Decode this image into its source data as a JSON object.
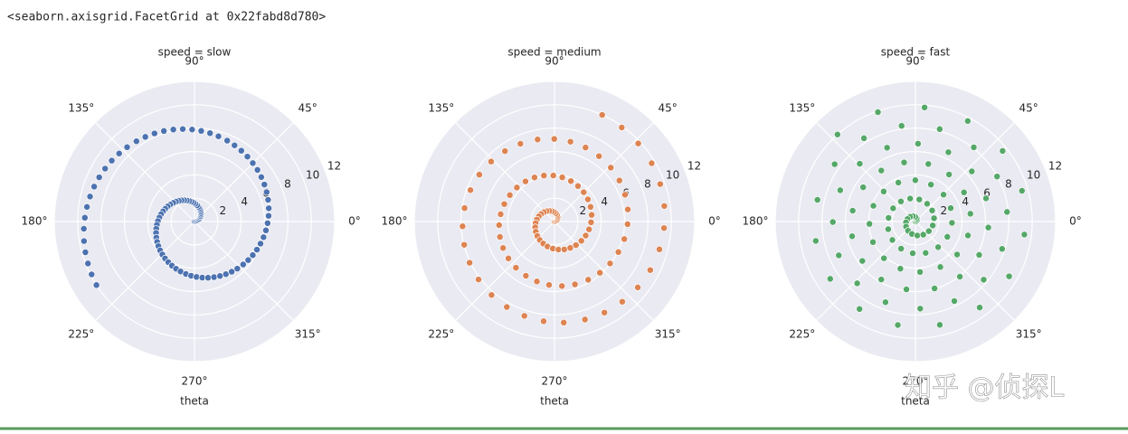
{
  "header": "<seaborn.axisgrid.FacetGrid at 0x22fabd8d780>",
  "watermark": "知乎 @侦探L",
  "chart_data": [
    {
      "type": "scatter",
      "title": "speed = slow",
      "xlabel": "theta",
      "color": "#4c72b0",
      "polar": true,
      "grid": true,
      "ylim": [
        0,
        12
      ],
      "yticks": [
        2,
        4,
        6,
        8,
        10,
        12
      ],
      "xticks": [
        {
          "value": 0,
          "label": "0°"
        },
        {
          "value": 0.7854,
          "label": "45°"
        },
        {
          "value": 1.5708,
          "label": "90°"
        },
        {
          "value": 2.3562,
          "label": "135°"
        },
        {
          "value": 3.1416,
          "label": "180°"
        },
        {
          "value": 3.927,
          "label": "225°"
        },
        {
          "value": 4.7124,
          "label": "270°"
        },
        {
          "value": 5.4978,
          "label": "315°"
        }
      ],
      "x": [
        0,
        0.1,
        0.2,
        0.3,
        0.4,
        0.51,
        0.61,
        0.71,
        0.81,
        0.91,
        1.01,
        1.11,
        1.21,
        1.31,
        1.41,
        1.52,
        1.62,
        1.72,
        1.82,
        1.92,
        2.02,
        2.12,
        2.22,
        2.32,
        2.42,
        2.53,
        2.63,
        2.73,
        2.83,
        2.93,
        3.03,
        3.13,
        3.23,
        3.33,
        3.43,
        3.54,
        3.64,
        3.74,
        3.84,
        3.94,
        4.04,
        4.14,
        4.24,
        4.34,
        4.44,
        4.55,
        4.65,
        4.75,
        4.85,
        4.95,
        5.05,
        5.15,
        5.25,
        5.35,
        5.45,
        5.56,
        5.66,
        5.76,
        5.86,
        5.96,
        6.06,
        6.16,
        6.26,
        6.36,
        6.46,
        6.57,
        6.67,
        6.77,
        6.87,
        6.97,
        7.07,
        7.17,
        7.27,
        7.37,
        7.47,
        7.58,
        7.68,
        7.78,
        7.88,
        7.98,
        8.08,
        8.18,
        8.28,
        8.38,
        8.48,
        8.59,
        8.69,
        8.79,
        8.89,
        8.99,
        9.09,
        9.19,
        9.29,
        9.39,
        9.49,
        9.6,
        9.7,
        9.8,
        9.9,
        10
      ],
      "values": [
        0,
        0.1,
        0.2,
        0.3,
        0.4,
        0.51,
        0.61,
        0.71,
        0.81,
        0.91,
        1.01,
        1.11,
        1.21,
        1.31,
        1.41,
        1.52,
        1.62,
        1.72,
        1.82,
        1.92,
        2.02,
        2.12,
        2.22,
        2.32,
        2.42,
        2.53,
        2.63,
        2.73,
        2.83,
        2.93,
        3.03,
        3.13,
        3.23,
        3.33,
        3.43,
        3.54,
        3.64,
        3.74,
        3.84,
        3.94,
        4.04,
        4.14,
        4.24,
        4.34,
        4.44,
        4.55,
        4.65,
        4.75,
        4.85,
        4.95,
        5.05,
        5.15,
        5.25,
        5.35,
        5.45,
        5.56,
        5.66,
        5.76,
        5.86,
        5.96,
        6.06,
        6.16,
        6.26,
        6.36,
        6.46,
        6.57,
        6.67,
        6.77,
        6.87,
        6.97,
        7.07,
        7.17,
        7.27,
        7.37,
        7.47,
        7.58,
        7.68,
        7.78,
        7.88,
        7.98,
        8.08,
        8.18,
        8.28,
        8.38,
        8.48,
        8.59,
        8.69,
        8.79,
        8.89,
        8.99,
        9.09,
        9.19,
        9.29,
        9.39,
        9.49,
        9.6,
        9.7,
        9.8,
        9.9,
        10
      ]
    },
    {
      "type": "scatter",
      "title": "speed = medium",
      "xlabel": "theta",
      "color": "#dd8452",
      "polar": true,
      "grid": true,
      "ylim": [
        0,
        12
      ],
      "yticks": [
        2,
        4,
        6,
        8,
        10,
        12
      ],
      "xticks": [
        {
          "value": 0,
          "label": "0°"
        },
        {
          "value": 0.7854,
          "label": "45°"
        },
        {
          "value": 1.5708,
          "label": "90°"
        },
        {
          "value": 2.3562,
          "label": "135°"
        },
        {
          "value": 3.1416,
          "label": "180°"
        },
        {
          "value": 3.927,
          "label": "225°"
        },
        {
          "value": 4.7124,
          "label": "270°"
        },
        {
          "value": 5.4978,
          "label": "315°"
        }
      ],
      "x": [
        0,
        0.2,
        0.4,
        0.61,
        0.81,
        1.01,
        1.21,
        1.41,
        1.62,
        1.82,
        2.02,
        2.22,
        2.42,
        2.63,
        2.83,
        3.03,
        3.23,
        3.43,
        3.64,
        3.84,
        4.04,
        4.24,
        4.44,
        4.65,
        4.85,
        5.05,
        5.25,
        5.45,
        5.66,
        5.86,
        6.06,
        6.26,
        6.46,
        6.67,
        6.87,
        7.07,
        7.27,
        7.47,
        7.68,
        7.88,
        8.08,
        8.28,
        8.48,
        8.69,
        8.89,
        9.09,
        9.29,
        9.49,
        9.7,
        9.9,
        10.1,
        10.3,
        10.51,
        10.71,
        10.91,
        11.11,
        11.31,
        11.52,
        11.72,
        11.92,
        12.12,
        12.32,
        12.53,
        12.73,
        12.93,
        13.13,
        13.33,
        13.54,
        13.74,
        13.94,
        14.14,
        14.34,
        14.55,
        14.75,
        14.95,
        15.15,
        15.35,
        15.56,
        15.76,
        15.96,
        16.16,
        16.36,
        16.57,
        16.77,
        16.97,
        17.17,
        17.37,
        17.58,
        17.78,
        17.98,
        18.18,
        18.38,
        18.59,
        18.79,
        18.99,
        19.19,
        19.39,
        19.6,
        19.8,
        20
      ],
      "values": [
        0,
        0.1,
        0.2,
        0.3,
        0.4,
        0.51,
        0.61,
        0.71,
        0.81,
        0.91,
        1.01,
        1.11,
        1.21,
        1.31,
        1.41,
        1.52,
        1.62,
        1.72,
        1.82,
        1.92,
        2.02,
        2.12,
        2.22,
        2.32,
        2.42,
        2.53,
        2.63,
        2.73,
        2.83,
        2.93,
        3.03,
        3.13,
        3.23,
        3.33,
        3.43,
        3.54,
        3.64,
        3.74,
        3.84,
        3.94,
        4.04,
        4.14,
        4.24,
        4.34,
        4.44,
        4.55,
        4.65,
        4.75,
        4.85,
        4.95,
        5.05,
        5.15,
        5.25,
        5.35,
        5.45,
        5.56,
        5.66,
        5.76,
        5.86,
        5.96,
        6.06,
        6.16,
        6.26,
        6.36,
        6.46,
        6.57,
        6.67,
        6.77,
        6.87,
        6.97,
        7.07,
        7.17,
        7.27,
        7.37,
        7.47,
        7.58,
        7.68,
        7.78,
        7.88,
        7.98,
        8.08,
        8.18,
        8.28,
        8.38,
        8.48,
        8.59,
        8.69,
        8.79,
        8.89,
        8.99,
        9.09,
        9.19,
        9.29,
        9.39,
        9.49,
        9.6,
        9.7,
        9.8,
        9.9,
        10
      ]
    },
    {
      "type": "scatter",
      "title": "speed = fast",
      "xlabel": "theta",
      "color": "#55a868",
      "polar": true,
      "grid": true,
      "ylim": [
        0,
        12
      ],
      "yticks": [
        2,
        4,
        6,
        8,
        10,
        12
      ],
      "xticks": [
        {
          "value": 0,
          "label": "0°"
        },
        {
          "value": 0.7854,
          "label": "45°"
        },
        {
          "value": 1.5708,
          "label": "90°"
        },
        {
          "value": 2.3562,
          "label": "135°"
        },
        {
          "value": 3.1416,
          "label": "180°"
        },
        {
          "value": 3.927,
          "label": "225°"
        },
        {
          "value": 4.7124,
          "label": "270°"
        },
        {
          "value": 5.4978,
          "label": "315°"
        }
      ],
      "x": [
        0,
        0.4,
        0.81,
        1.21,
        1.62,
        2.02,
        2.42,
        2.83,
        3.23,
        3.64,
        4.04,
        4.44,
        4.85,
        5.25,
        5.66,
        6.06,
        6.46,
        6.87,
        7.27,
        7.68,
        8.08,
        8.48,
        8.89,
        9.29,
        9.7,
        10.1,
        10.51,
        10.91,
        11.31,
        11.72,
        12.12,
        12.53,
        12.93,
        13.33,
        13.74,
        14.14,
        14.55,
        14.95,
        15.35,
        15.76,
        16.16,
        16.57,
        16.97,
        17.37,
        17.78,
        18.18,
        18.59,
        18.99,
        19.39,
        19.8,
        20.2,
        20.61,
        21.01,
        21.41,
        21.82,
        22.22,
        22.63,
        23.03,
        23.43,
        23.84,
        24.24,
        24.65,
        25.05,
        25.45,
        25.86,
        26.26,
        26.67,
        27.07,
        27.47,
        27.88,
        28.28,
        28.69,
        29.09,
        29.49,
        29.9,
        30.3,
        30.71,
        31.11,
        31.52,
        31.92,
        32.32,
        32.73,
        33.13,
        33.54,
        33.94,
        34.34,
        34.75,
        35.15,
        35.56,
        35.96,
        36.36,
        36.77,
        37.17,
        37.58,
        37.98,
        38.38,
        38.79,
        39.19,
        39.6,
        40
      ],
      "values": [
        0,
        0.1,
        0.2,
        0.3,
        0.4,
        0.51,
        0.61,
        0.71,
        0.81,
        0.91,
        1.01,
        1.11,
        1.21,
        1.31,
        1.41,
        1.52,
        1.62,
        1.72,
        1.82,
        1.92,
        2.02,
        2.12,
        2.22,
        2.32,
        2.42,
        2.53,
        2.63,
        2.73,
        2.83,
        2.93,
        3.03,
        3.13,
        3.23,
        3.33,
        3.43,
        3.54,
        3.64,
        3.74,
        3.84,
        3.94,
        4.04,
        4.14,
        4.24,
        4.34,
        4.44,
        4.55,
        4.65,
        4.75,
        4.85,
        4.95,
        5.05,
        5.15,
        5.25,
        5.35,
        5.45,
        5.56,
        5.66,
        5.76,
        5.86,
        5.96,
        6.06,
        6.16,
        6.26,
        6.36,
        6.46,
        6.57,
        6.67,
        6.77,
        6.87,
        6.97,
        7.07,
        7.17,
        7.27,
        7.37,
        7.47,
        7.58,
        7.68,
        7.78,
        7.88,
        7.98,
        8.08,
        8.18,
        8.28,
        8.38,
        8.48,
        8.59,
        8.69,
        8.79,
        8.89,
        8.99,
        9.09,
        9.19,
        9.29,
        9.39,
        9.49,
        9.6,
        9.7,
        9.8,
        9.9,
        10
      ]
    }
  ]
}
